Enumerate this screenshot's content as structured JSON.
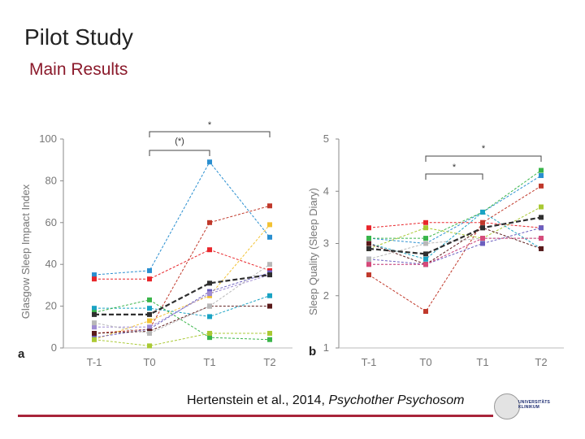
{
  "slide": {
    "title": "Pilot Study",
    "subtitle": "Main Results",
    "citation_text": "Hertenstein et al., 2014, ",
    "citation_journal": "Psychother Psychosom",
    "logo_text": [
      "UNIVERSITÄTS",
      "KLINIKUM"
    ],
    "accent_color": "#a8243a"
  },
  "chart_data": [
    {
      "type": "line",
      "panel_label": "a",
      "categories": [
        "T-1",
        "T0",
        "T1",
        "T2"
      ],
      "ylabel": "Glasgow Sleep Impact Index",
      "ylim": [
        0,
        100
      ],
      "yticks": [
        0,
        20,
        40,
        60,
        80,
        100
      ],
      "grid": false,
      "significance": [
        {
          "from": "T0",
          "to": "T1",
          "label": "(*)"
        },
        {
          "from": "T0",
          "to": "T2",
          "label": "*"
        }
      ],
      "series": [
        {
          "color": "#2a8fd0",
          "dash": "solid",
          "values": [
            35,
            37,
            89,
            53
          ]
        },
        {
          "color": "#e8262b",
          "dash": "solid",
          "values": [
            33,
            33,
            47,
            37
          ]
        },
        {
          "color": "#c0392b",
          "dash": "solid",
          "values": [
            7,
            9,
            60,
            68
          ]
        },
        {
          "color": "#f2c233",
          "dash": "solid",
          "values": [
            4,
            13,
            25,
            59
          ]
        },
        {
          "color": "#1aa3c4",
          "dash": "solid",
          "values": [
            19,
            19,
            15,
            25
          ]
        },
        {
          "color": "#3ab54a",
          "dash": "solid",
          "values": [
            17,
            23,
            5,
            4
          ]
        },
        {
          "color": "#6b5fbf",
          "dash": "solid",
          "values": [
            5,
            9,
            27,
            36
          ]
        },
        {
          "color": "#9f8bd3",
          "dash": "solid",
          "values": [
            10,
            10,
            26,
            35
          ]
        },
        {
          "color": "#5a1a1a",
          "dash": "solid",
          "values": [
            7,
            8,
            20,
            20
          ]
        },
        {
          "color": "#a9c934",
          "dash": "solid",
          "values": [
            4,
            1,
            7,
            7
          ]
        },
        {
          "color": "#b8b8b8",
          "dash": "solid",
          "values": [
            12,
            7,
            20,
            40
          ]
        },
        {
          "color": "#2f2f2f",
          "dash": "dashed",
          "values": [
            16,
            16,
            31,
            35
          ]
        }
      ]
    },
    {
      "type": "line",
      "panel_label": "b",
      "categories": [
        "T-1",
        "T0",
        "T1",
        "T2"
      ],
      "ylabel": "Sleep Quality (Sleep Diary)",
      "ylim": [
        1,
        5
      ],
      "yticks": [
        1,
        2,
        3,
        4,
        5
      ],
      "grid": false,
      "significance": [
        {
          "from": "T0",
          "to": "T1",
          "label": "*"
        },
        {
          "from": "T0",
          "to": "T2",
          "label": "*"
        }
      ],
      "series": [
        {
          "color": "#2a8fd0",
          "dash": "solid",
          "values": [
            3.1,
            3.0,
            3.6,
            4.3
          ]
        },
        {
          "color": "#3ab54a",
          "dash": "solid",
          "values": [
            3.1,
            3.1,
            3.6,
            4.4
          ]
        },
        {
          "color": "#e8262b",
          "dash": "solid",
          "values": [
            3.3,
            3.4,
            3.4,
            3.3
          ]
        },
        {
          "color": "#c0392b",
          "dash": "solid",
          "values": [
            2.4,
            1.7,
            3.4,
            4.1
          ]
        },
        {
          "color": "#a9c934",
          "dash": "solid",
          "values": [
            2.9,
            3.3,
            3.1,
            3.7
          ]
        },
        {
          "color": "#6b5fbf",
          "dash": "solid",
          "values": [
            2.7,
            2.6,
            3.0,
            3.3
          ]
        },
        {
          "color": "#9f8bd3",
          "dash": "solid",
          "values": [
            2.6,
            2.6,
            3.1,
            3.1
          ]
        },
        {
          "color": "#1aa3c4",
          "dash": "solid",
          "values": [
            3.0,
            2.7,
            3.6,
            2.9
          ]
        },
        {
          "color": "#5a1a1a",
          "dash": "solid",
          "values": [
            3.0,
            2.6,
            3.3,
            2.9
          ]
        },
        {
          "color": "#b8b8b8",
          "dash": "solid",
          "values": [
            2.7,
            3.0,
            3.1,
            3.1
          ]
        },
        {
          "color": "#d64a7a",
          "dash": "solid",
          "values": [
            2.6,
            2.6,
            3.1,
            3.1
          ]
        },
        {
          "color": "#2f2f2f",
          "dash": "dashed",
          "values": [
            2.9,
            2.8,
            3.3,
            3.5
          ]
        }
      ]
    }
  ]
}
